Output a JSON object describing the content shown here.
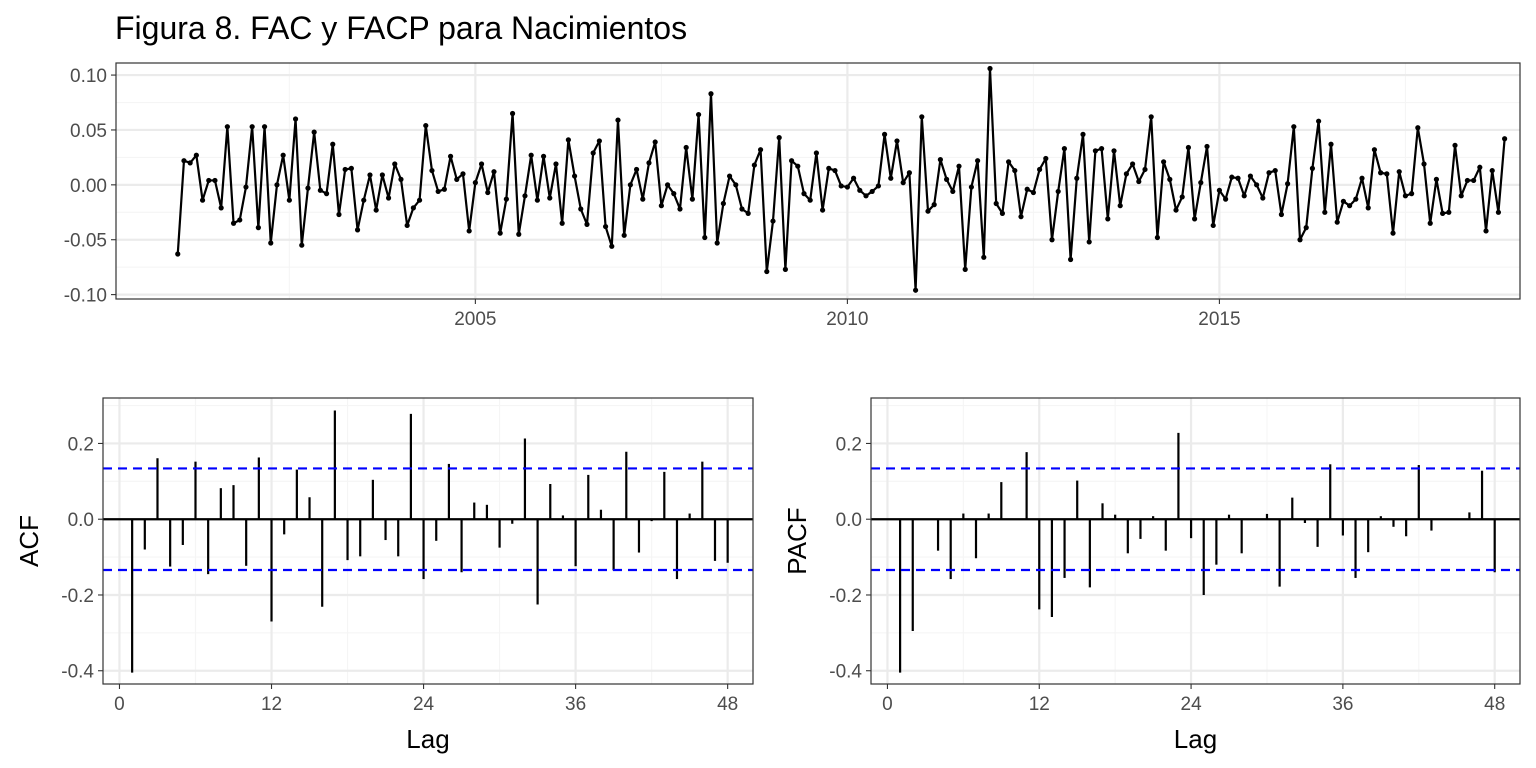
{
  "title": "Figura 8. FAC y FACP para Nacimientos",
  "colors": {
    "line": "#000000",
    "confidence_band": "#0000ff",
    "grid_major": "#ebebeb",
    "grid_minor": "#f5f5f5",
    "panel_border": "#333333",
    "tick_label": "#4d4d4d"
  },
  "chart_data": [
    {
      "type": "line",
      "id": "series",
      "xlabel": "",
      "ylabel": "",
      "x_ticks": [
        2005,
        2010,
        2015
      ],
      "x_tick_labels": [
        "2005",
        "2010",
        "2015"
      ],
      "y_ticks": [
        0.1,
        0.05,
        0.0,
        -0.05,
        -0.1
      ],
      "y_tick_labels": [
        "0.10",
        "0.05",
        "0.00",
        "-0.05",
        "-0.10"
      ],
      "xlim": [
        2000.17,
        2019.04
      ],
      "ylim": [
        -0.104,
        0.111
      ],
      "x_start": 2001.0,
      "x_step": 0.0833333,
      "markers": true,
      "grid": true,
      "values": [
        -0.063,
        0.022,
        0.02,
        0.027,
        -0.014,
        0.004,
        0.004,
        -0.021,
        0.053,
        -0.035,
        -0.032,
        -0.002,
        0.053,
        -0.039,
        0.053,
        -0.053,
        0.0,
        0.027,
        -0.014,
        0.06,
        -0.055,
        -0.003,
        0.048,
        -0.005,
        -0.008,
        0.037,
        -0.027,
        0.014,
        0.015,
        -0.041,
        -0.014,
        0.009,
        -0.023,
        0.009,
        -0.012,
        0.019,
        0.005,
        -0.037,
        -0.021,
        -0.014,
        0.054,
        0.013,
        -0.006,
        -0.004,
        0.026,
        0.005,
        0.01,
        -0.042,
        0.002,
        0.019,
        -0.007,
        0.012,
        -0.044,
        -0.013,
        0.065,
        -0.045,
        -0.01,
        0.027,
        -0.014,
        0.026,
        -0.012,
        0.019,
        -0.035,
        0.041,
        0.008,
        -0.022,
        -0.036,
        0.029,
        0.04,
        -0.038,
        -0.056,
        0.059,
        -0.046,
        0.0,
        0.014,
        -0.013,
        0.02,
        0.039,
        -0.019,
        0.0,
        -0.008,
        -0.022,
        0.034,
        -0.013,
        0.064,
        -0.048,
        0.083,
        -0.053,
        -0.017,
        0.008,
        0.0,
        -0.022,
        -0.026,
        0.018,
        0.032,
        -0.079,
        -0.033,
        0.043,
        -0.077,
        0.022,
        0.017,
        -0.008,
        -0.014,
        0.029,
        -0.023,
        0.015,
        0.013,
        -0.001,
        -0.002,
        0.006,
        -0.005,
        -0.01,
        -0.006,
        -0.001,
        0.046,
        0.006,
        0.04,
        0.002,
        0.011,
        -0.096,
        0.062,
        -0.024,
        -0.018,
        0.023,
        0.005,
        -0.006,
        0.017,
        -0.077,
        -0.002,
        0.022,
        -0.066,
        0.106,
        -0.017,
        -0.026,
        0.021,
        0.013,
        -0.029,
        -0.004,
        -0.007,
        0.014,
        0.024,
        -0.05,
        -0.006,
        0.033,
        -0.068,
        0.006,
        0.046,
        -0.052,
        0.031,
        0.033,
        -0.031,
        0.031,
        -0.019,
        0.01,
        0.019,
        0.003,
        0.014,
        0.062,
        -0.048,
        0.021,
        0.005,
        -0.023,
        -0.011,
        0.034,
        -0.031,
        0.002,
        0.035,
        -0.037,
        -0.005,
        -0.013,
        0.007,
        0.006,
        -0.01,
        0.008,
        0.0,
        -0.012,
        0.011,
        0.013,
        -0.027,
        0.001,
        0.053,
        -0.05,
        -0.039,
        0.015,
        0.058,
        -0.025,
        0.037,
        -0.034,
        -0.015,
        -0.019,
        -0.013,
        0.006,
        -0.021,
        0.032,
        0.011,
        0.01,
        -0.044,
        0.012,
        -0.01,
        -0.008,
        0.052,
        0.019,
        -0.035,
        0.005,
        -0.026,
        -0.025,
        0.036,
        -0.01,
        0.004,
        0.004,
        0.016,
        -0.042,
        0.013,
        -0.025,
        0.042
      ]
    },
    {
      "type": "bar",
      "id": "acf",
      "xlabel": "Lag",
      "ylabel": "ACF",
      "x_ticks": [
        0,
        12,
        24,
        36,
        48
      ],
      "x_tick_labels": [
        "0",
        "12",
        "24",
        "36",
        "48"
      ],
      "y_ticks": [
        0.2,
        0.0,
        -0.2,
        -0.4
      ],
      "y_tick_labels": [
        "0.2",
        "0.0",
        "-0.2",
        "-0.4"
      ],
      "xlim": [
        -1.3,
        50.0
      ],
      "ylim": [
        -0.435,
        0.32
      ],
      "confidence_limit": 0.134,
      "grid": true,
      "lags": [
        1,
        2,
        3,
        4,
        5,
        6,
        7,
        8,
        9,
        10,
        11,
        12,
        13,
        14,
        15,
        16,
        17,
        18,
        19,
        20,
        21,
        22,
        23,
        24,
        25,
        26,
        27,
        28,
        29,
        30,
        31,
        32,
        33,
        34,
        35,
        36,
        37,
        38,
        39,
        40,
        41,
        42,
        43,
        44,
        45,
        46,
        47,
        48
      ],
      "values": [
        -0.405,
        -0.08,
        0.161,
        -0.125,
        -0.068,
        0.152,
        -0.145,
        0.082,
        0.09,
        -0.123,
        0.163,
        -0.27,
        -0.04,
        0.131,
        0.058,
        -0.231,
        0.287,
        -0.108,
        -0.098,
        0.104,
        -0.055,
        -0.098,
        0.278,
        -0.158,
        -0.057,
        0.146,
        -0.14,
        0.044,
        0.038,
        -0.075,
        -0.012,
        0.213,
        -0.225,
        0.093,
        0.01,
        -0.124,
        0.117,
        0.025,
        -0.135,
        0.178,
        -0.088,
        -0.005,
        0.125,
        -0.158,
        0.015,
        0.152,
        -0.11,
        -0.115
      ]
    },
    {
      "type": "bar",
      "id": "pacf",
      "xlabel": "Lag",
      "ylabel": "PACF",
      "x_ticks": [
        0,
        12,
        24,
        36,
        48
      ],
      "x_tick_labels": [
        "0",
        "12",
        "24",
        "36",
        "48"
      ],
      "y_ticks": [
        0.2,
        0.0,
        -0.2,
        -0.4
      ],
      "y_tick_labels": [
        "0.2",
        "0.0",
        "-0.2",
        "-0.4"
      ],
      "xlim": [
        -1.3,
        50.0
      ],
      "ylim": [
        -0.435,
        0.32
      ],
      "confidence_limit": 0.134,
      "grid": true,
      "lags": [
        1,
        2,
        3,
        4,
        5,
        6,
        7,
        8,
        9,
        10,
        11,
        12,
        13,
        14,
        15,
        16,
        17,
        18,
        19,
        20,
        21,
        22,
        23,
        24,
        25,
        26,
        27,
        28,
        29,
        30,
        31,
        32,
        33,
        34,
        35,
        36,
        37,
        38,
        39,
        40,
        41,
        42,
        43,
        44,
        45,
        46,
        47,
        48
      ],
      "values": [
        -0.405,
        -0.295,
        0.0,
        -0.083,
        -0.158,
        0.015,
        -0.103,
        0.015,
        0.098,
        0.0,
        0.177,
        -0.238,
        -0.258,
        -0.155,
        0.102,
        -0.18,
        0.042,
        0.012,
        -0.09,
        -0.052,
        0.008,
        -0.083,
        0.228,
        -0.05,
        -0.2,
        -0.12,
        0.012,
        -0.09,
        0.0,
        0.014,
        -0.178,
        0.057,
        -0.01,
        -0.073,
        0.145,
        -0.043,
        -0.155,
        -0.087,
        0.008,
        -0.02,
        -0.045,
        0.143,
        -0.03,
        0.0,
        0.0,
        0.018,
        0.128,
        -0.14
      ]
    }
  ]
}
